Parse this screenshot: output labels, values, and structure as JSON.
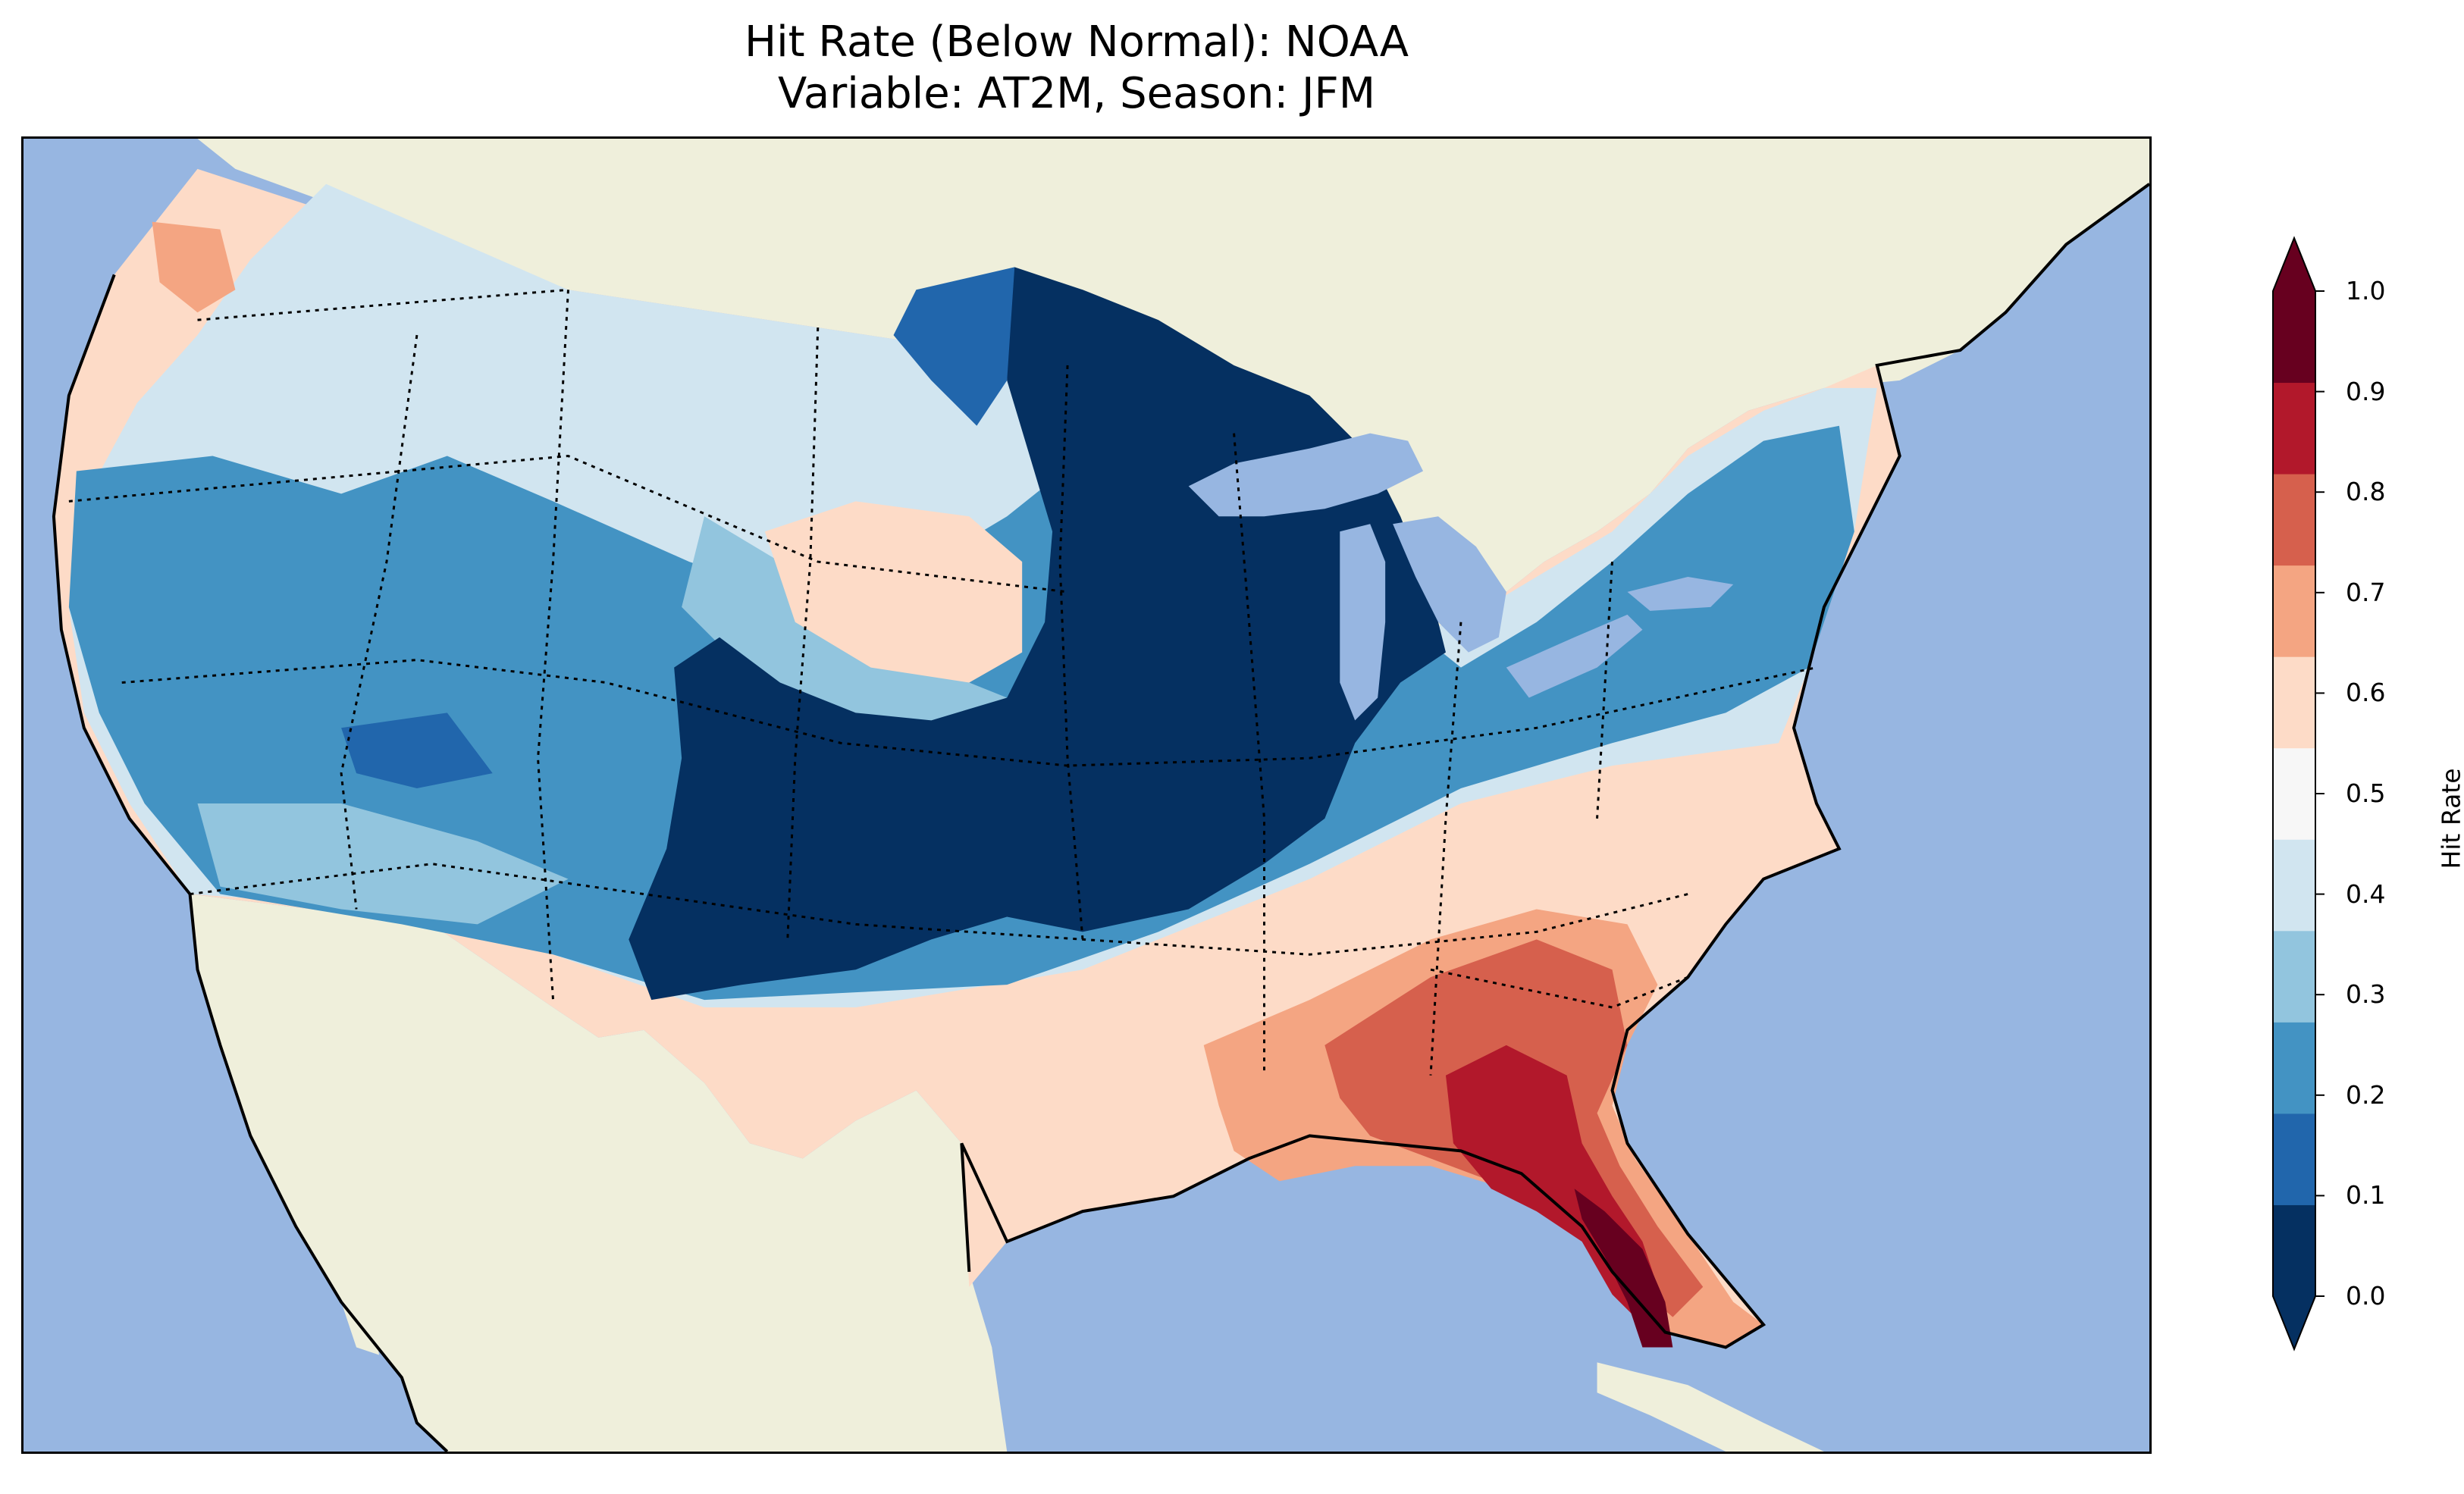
{
  "title": {
    "line1": "Hit Rate (Below Normal): NOAA",
    "line2": "Variable: AT2M, Season: JFM"
  },
  "colors": {
    "ocean": "#97b6e1",
    "land": "#efefdb",
    "lakes": "#97b6e1"
  },
  "legend": {
    "label": "Hit Rate",
    "ticks": [
      "0.0",
      "0.1",
      "0.2",
      "0.3",
      "0.4",
      "0.5",
      "0.6",
      "0.7",
      "0.8",
      "0.9",
      "1.0"
    ],
    "colors": [
      "#053061",
      "#2166ac",
      "#4393c3",
      "#92c5de",
      "#d1e5f0",
      "#f7f7f7",
      "#fddbc7",
      "#f4a582",
      "#d6604d",
      "#b2182b",
      "#67001f"
    ],
    "under_color": "#053061",
    "over_color": "#67001f",
    "extend": "both"
  },
  "map": {
    "projection": "conic",
    "region": "CONUS",
    "features": [
      "states",
      "coastlines",
      "lakes",
      "borders"
    ]
  }
}
